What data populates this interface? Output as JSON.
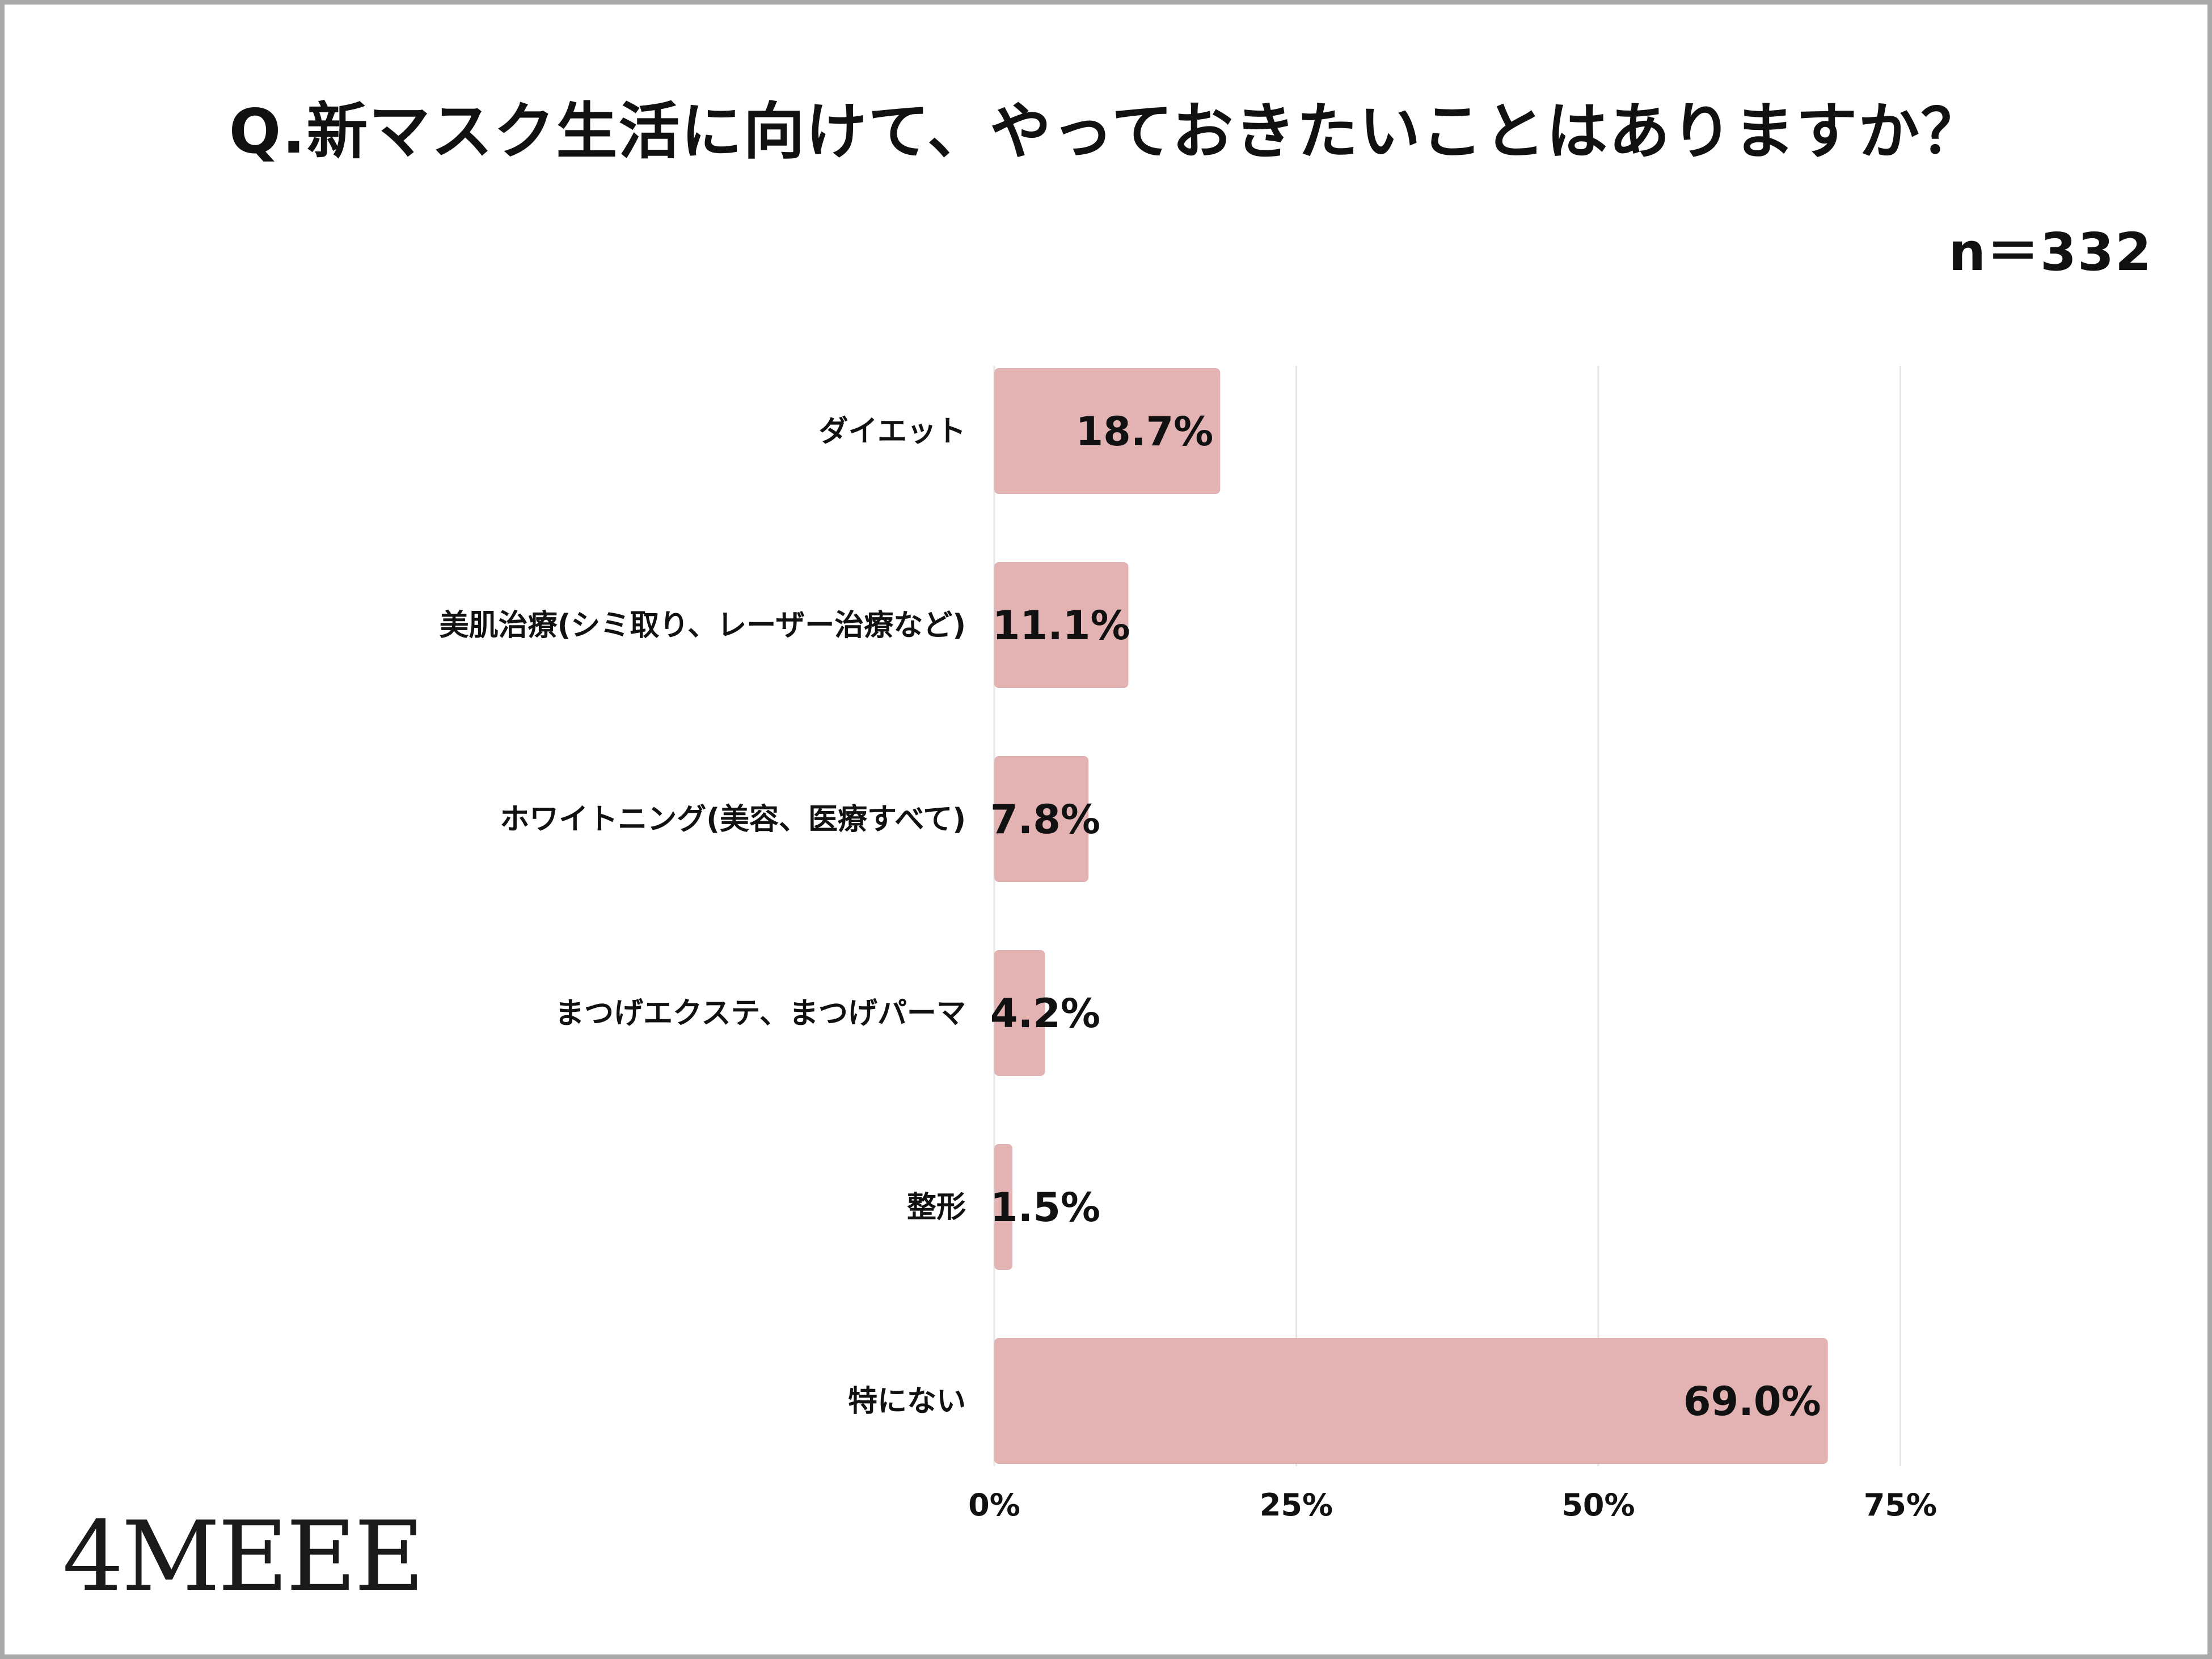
{
  "chart_data": {
    "type": "bar",
    "orientation": "horizontal",
    "title": "Q.新マスク生活に向けて、やっておきたいことはありますか？",
    "sample_size": "n＝332",
    "categories": [
      "ダイエット",
      "美肌治療(シミ取り、レーザー治療など)",
      "ホワイトニング(美容、医療すべて)",
      "まつげエクステ、まつげパーマ",
      "整形",
      "特にない"
    ],
    "values": [
      18.7,
      11.1,
      7.8,
      4.2,
      1.5,
      69.0
    ],
    "value_labels": [
      "18.7%",
      "11.1%",
      "7.8%",
      "4.2%",
      "1.5%",
      "69.0%"
    ],
    "xlim": [
      0,
      90
    ],
    "xticks": [
      0,
      25,
      50,
      75
    ],
    "xtick_labels": [
      "0%",
      "25%",
      "50%",
      "75%"
    ],
    "grid": true,
    "bar_color": "#e3b3b4",
    "grid_color": "#e6e6e6"
  },
  "logo": {
    "text": "4MEEE"
  }
}
